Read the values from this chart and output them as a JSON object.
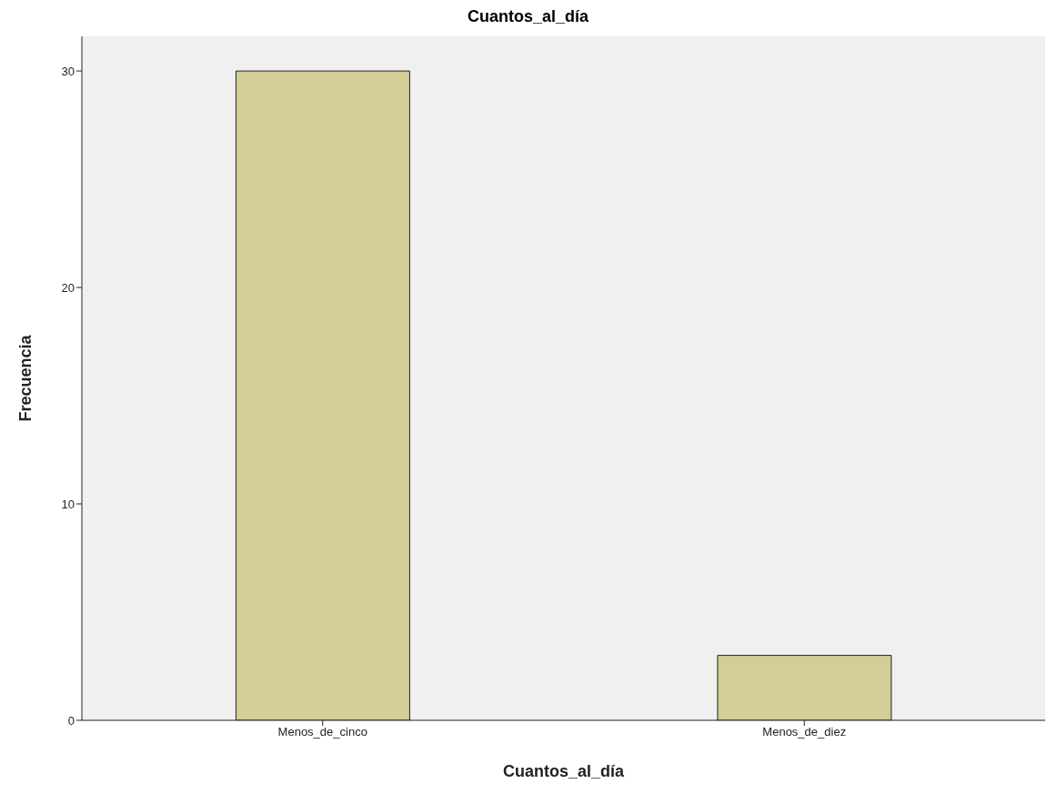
{
  "chart_data": {
    "type": "bar",
    "title": "Cuantos_al_día",
    "xlabel": "Cuantos_al_día",
    "ylabel": "Frecuencia",
    "categories": [
      "Menos_de_cinco",
      "Menos_de_diez"
    ],
    "values": [
      30,
      3
    ],
    "color": "#d3ce97",
    "ylim": [
      0,
      31.6
    ],
    "yticks": [
      0,
      10,
      20,
      30
    ],
    "legend": false
  }
}
